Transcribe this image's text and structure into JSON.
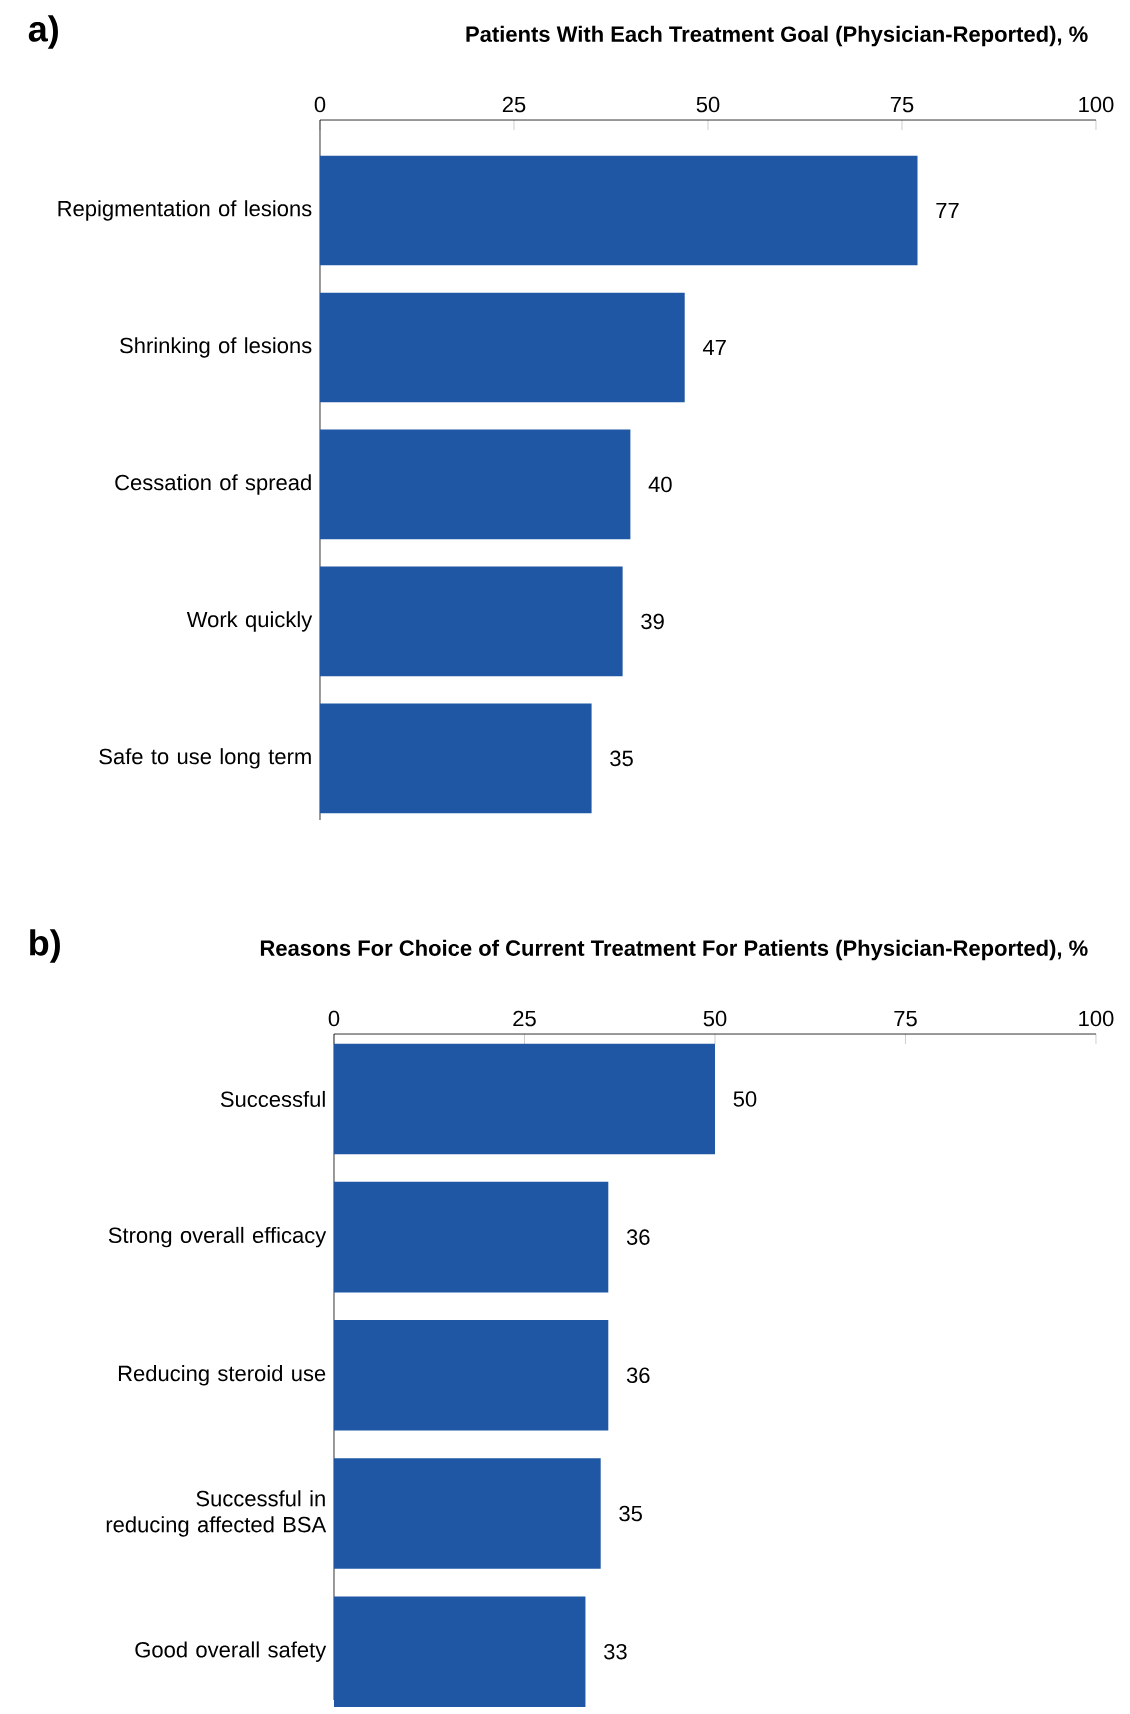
{
  "chart_data": [
    {
      "type": "bar",
      "orientation": "horizontal",
      "title": "Patients With Each Treatment Goal (Physician-Reported), %",
      "annotations": [
        "a)"
      ],
      "categories": [
        "Repigmentation of lesions",
        "Shrinking of lesions",
        "Cessation of spread",
        "Work quickly",
        "Safe to use long term"
      ],
      "values": [
        77,
        47,
        40,
        39,
        35
      ],
      "color": "#1f57a5",
      "xlim": [
        0,
        100
      ],
      "xticks": [
        0,
        25,
        50,
        75,
        100
      ],
      "data_labels": true,
      "grid": false
    },
    {
      "type": "bar",
      "orientation": "horizontal",
      "title": "Reasons For Choice of Current Treatment For Patients (Physician-Reported), %",
      "annotations": [
        "b)"
      ],
      "categories": [
        "Successful",
        "Strong overall efficacy",
        "Reducing steroid use",
        "Successful in reducing affected BSA",
        "Good overall safety"
      ],
      "values": [
        50,
        36,
        36,
        35,
        33
      ],
      "color": "#1f57a5",
      "xlim": [
        0,
        100
      ],
      "xticks": [
        0,
        25,
        50,
        75,
        100
      ],
      "data_labels": true,
      "grid": false
    }
  ]
}
